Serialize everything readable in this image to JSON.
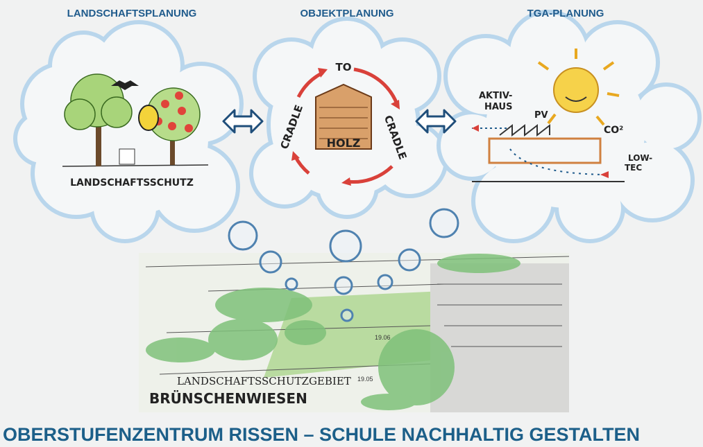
{
  "headers": [
    "LANDSCHAFTSPLANUNG",
    "OBJEKTPLANUNG",
    "TGA-PLANUNG"
  ],
  "landscape": {
    "label": "LANDSCHAFTSSCHUTZ"
  },
  "cycle": {
    "top": "TO",
    "left": "CRADLE",
    "right": "CRADLE",
    "house": "HOLZ"
  },
  "tga": {
    "aktiv": [
      "AKTIV-",
      "HAUS"
    ],
    "pv": "PV",
    "co2": "CO²",
    "lowtec": [
      "LOW-",
      "TEC"
    ]
  },
  "site": {
    "label": "LANDSCHAFTSSCHUTZGEBIET",
    "name": "BRÜNSCHENWIESEN",
    "levels": [
      "19.06",
      "19.05"
    ]
  },
  "footer": "OBERSTUFENZENTRUM RISSEN – SCHULE NACHHALTIG GESTALTEN"
}
